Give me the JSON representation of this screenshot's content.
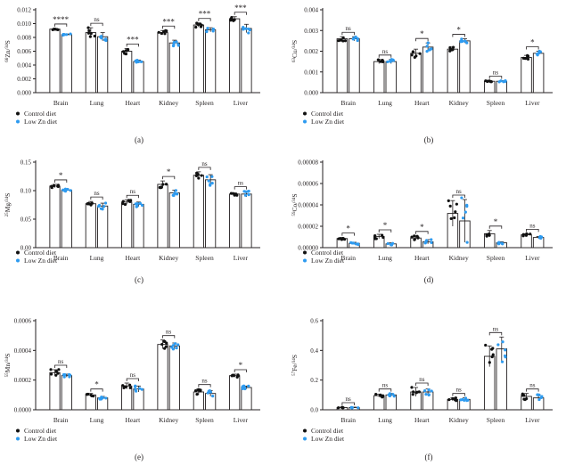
{
  "series_names": [
    "Control diet",
    "Low Zn diet"
  ],
  "colors": {
    "control": "#111111",
    "lowzn": "#2e9bf0",
    "axis": "#231f20"
  },
  "chart_data": [
    {
      "type": "bar",
      "panel_label": "(a)",
      "ylabel_html": [
        "66",
        "Zn/",
        "34",
        "S"
      ],
      "categories": [
        "Brain",
        "Lung",
        "Heart",
        "Kidney",
        "Spleen",
        "Liver"
      ],
      "ylim": [
        0,
        0.012
      ],
      "ticks": [
        "0.000",
        "0.002",
        "0.004",
        "0.006",
        "0.008",
        "0.010",
        "0.012"
      ],
      "tick_values": [
        0,
        0.002,
        0.004,
        0.006,
        0.008,
        0.01,
        0.012
      ],
      "series": [
        {
          "name": "Control diet",
          "values": [
            0.0092,
            0.0087,
            0.006,
            0.0087,
            0.0098,
            0.0107
          ],
          "errors": [
            0.0001,
            0.0007,
            0.0004,
            0.0003,
            0.0003,
            0.0003
          ]
        },
        {
          "name": "Low Zn diet",
          "values": [
            0.0084,
            0.0081,
            0.0045,
            0.0072,
            0.0091,
            0.0093
          ],
          "errors": [
            0.0001,
            0.0006,
            0.0002,
            0.0004,
            0.0003,
            0.0006
          ]
        }
      ],
      "significance": [
        "****",
        "ns",
        "***",
        "***",
        "***",
        "***"
      ],
      "legend": "bottom-left"
    },
    {
      "type": "bar",
      "panel_label": "(b)",
      "ylabel_html": [
        "63",
        "Cu/",
        "34",
        "S"
      ],
      "categories": [
        "Brain",
        "Lung",
        "Heart",
        "Kidney",
        "Spleen",
        "Liver"
      ],
      "ylim": [
        0,
        0.004
      ],
      "ticks": [
        "0.000",
        "0.001",
        "0.002",
        "0.003",
        "0.004"
      ],
      "tick_values": [
        0,
        0.001,
        0.002,
        0.003,
        0.004
      ],
      "series": [
        {
          "name": "Control diet",
          "values": [
            0.0026,
            0.0015,
            0.0019,
            0.0021,
            0.00055,
            0.0017
          ],
          "errors": [
            0.0001,
            0.0001,
            0.0002,
            0.0001,
            3e-05,
            0.0001
          ]
        },
        {
          "name": "Low Zn diet",
          "values": [
            0.0026,
            0.0015,
            0.0022,
            0.0025,
            0.00055,
            0.0019
          ],
          "errors": [
            0.0001,
            0.0001,
            0.0002,
            0.0001,
            3e-05,
            0.0001
          ]
        }
      ],
      "significance": [
        "ns",
        "ns",
        "*",
        "*",
        "ns",
        "*"
      ],
      "legend": "bottom-left"
    },
    {
      "type": "bar",
      "panel_label": "(c)",
      "ylabel_html": [
        "25",
        "Mg/",
        "34",
        "S"
      ],
      "categories": [
        "Brain",
        "Lung",
        "Heart",
        "Kidney",
        "Spleen",
        "Liver"
      ],
      "ylim": [
        0,
        0.15
      ],
      "ticks": [
        "0.00",
        "0.05",
        "0.10",
        "0.15"
      ],
      "tick_values": [
        0,
        0.05,
        0.1,
        0.15
      ],
      "series": [
        {
          "name": "Control diet",
          "values": [
            0.108,
            0.077,
            0.08,
            0.111,
            0.127,
            0.094
          ],
          "errors": [
            0.003,
            0.004,
            0.004,
            0.006,
            0.006,
            0.002
          ]
        },
        {
          "name": "Low Zn diet",
          "values": [
            0.101,
            0.073,
            0.076,
            0.096,
            0.119,
            0.094
          ],
          "errors": [
            0.002,
            0.005,
            0.004,
            0.005,
            0.009,
            0.005
          ]
        }
      ],
      "significance": [
        "*",
        "ns",
        "ns",
        "*",
        "ns",
        "ns"
      ],
      "legend": "bottom-left"
    },
    {
      "type": "bar",
      "panel_label": "(d)",
      "ylabel_html": [
        "59",
        "Co/",
        "34",
        "S"
      ],
      "categories": [
        "Brain",
        "Lung",
        "Heart",
        "Kidney",
        "Spleen",
        "Liver"
      ],
      "ylim": [
        0,
        8e-05
      ],
      "ticks": [
        "0.00000",
        "0.00002",
        "0.00004",
        "0.00006",
        "0.00008"
      ],
      "tick_values": [
        0,
        2e-05,
        4e-05,
        6e-05,
        8e-05
      ],
      "series": [
        {
          "name": "Control diet",
          "values": [
            8.5e-06,
            1.05e-05,
            9e-06,
            3.2e-05,
            1.3e-05,
            1.2e-05
          ],
          "errors": [
            1e-06,
            2e-06,
            2e-06,
            1.2e-05,
            3e-06,
            1e-06
          ]
        },
        {
          "name": "Low Zn diet",
          "values": [
            4e-06,
            3.5e-06,
            5.5e-06,
            2.5e-05,
            4.5e-06,
            9.5e-06
          ],
          "errors": [
            1e-06,
            1e-06,
            2e-06,
            2e-05,
            1e-06,
            1e-06
          ]
        }
      ],
      "significance": [
        "*",
        "*",
        "*",
        "ns",
        "*",
        "ns"
      ],
      "legend": "bottom-left"
    },
    {
      "type": "bar",
      "panel_label": "(e)",
      "ylabel_html": [
        "55",
        "Mn/",
        "34",
        "S"
      ],
      "categories": [
        "Brain",
        "Lung",
        "Heart",
        "Kidney",
        "Spleen",
        "Liver"
      ],
      "ylim": [
        0,
        0.0006
      ],
      "ticks": [
        "0.0000",
        "0.0002",
        "0.0004",
        "0.0006"
      ],
      "tick_values": [
        0,
        0.0002,
        0.0004,
        0.0006
      ],
      "series": [
        {
          "name": "Control diet",
          "values": [
            0.00025,
            0.0001,
            0.00016,
            0.00044,
            0.00012,
            0.00023
          ],
          "errors": [
            2e-05,
            1e-05,
            2e-05,
            3e-05,
            2e-05,
            1e-05
          ]
        },
        {
          "name": "Low Zn diet",
          "values": [
            0.00023,
            8e-05,
            0.00014,
            0.00043,
            0.00011,
            0.00015
          ],
          "errors": [
            1e-05,
            1e-05,
            2e-05,
            2e-05,
            2e-05,
            1e-05
          ]
        }
      ],
      "significance": [
        "ns",
        "*",
        "ns",
        "ns",
        "ns",
        "*"
      ],
      "legend": "bottom-left"
    },
    {
      "type": "bar",
      "panel_label": "(f)",
      "ylabel_html": [
        "57",
        "Fe/",
        "34",
        "S"
      ],
      "categories": [
        "Brain",
        "Lung",
        "Heart",
        "Kidney",
        "Spleen",
        "Liver"
      ],
      "ylim": [
        0,
        0.6
      ],
      "ticks": [
        "0.0",
        "0.2",
        "0.4",
        "0.6"
      ],
      "tick_values": [
        0,
        0.2,
        0.4,
        0.6
      ],
      "series": [
        {
          "name": "Control diet",
          "values": [
            0.015,
            0.095,
            0.12,
            0.07,
            0.36,
            0.09
          ],
          "errors": [
            0.003,
            0.01,
            0.03,
            0.01,
            0.07,
            0.02
          ]
        },
        {
          "name": "Low Zn diet",
          "values": [
            0.015,
            0.1,
            0.12,
            0.07,
            0.41,
            0.08
          ],
          "errors": [
            0.003,
            0.01,
            0.02,
            0.01,
            0.08,
            0.02
          ]
        }
      ],
      "significance": [
        "ns",
        "ns",
        "ns",
        "ns",
        "ns",
        "ns"
      ],
      "legend": "bottom-left"
    }
  ]
}
